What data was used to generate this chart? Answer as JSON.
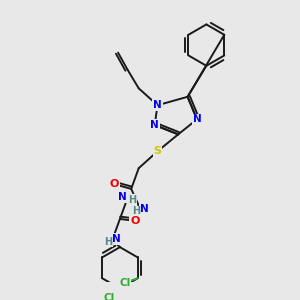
{
  "background_color": "#e8e8e8",
  "bond_color": "#1a1a1a",
  "bond_width": 1.4,
  "atom_colors": {
    "N": "#0000ee",
    "O": "#ee0000",
    "S": "#cccc00",
    "Cl": "#33aa33",
    "H": "#558888"
  },
  "fontsize": 7.5
}
